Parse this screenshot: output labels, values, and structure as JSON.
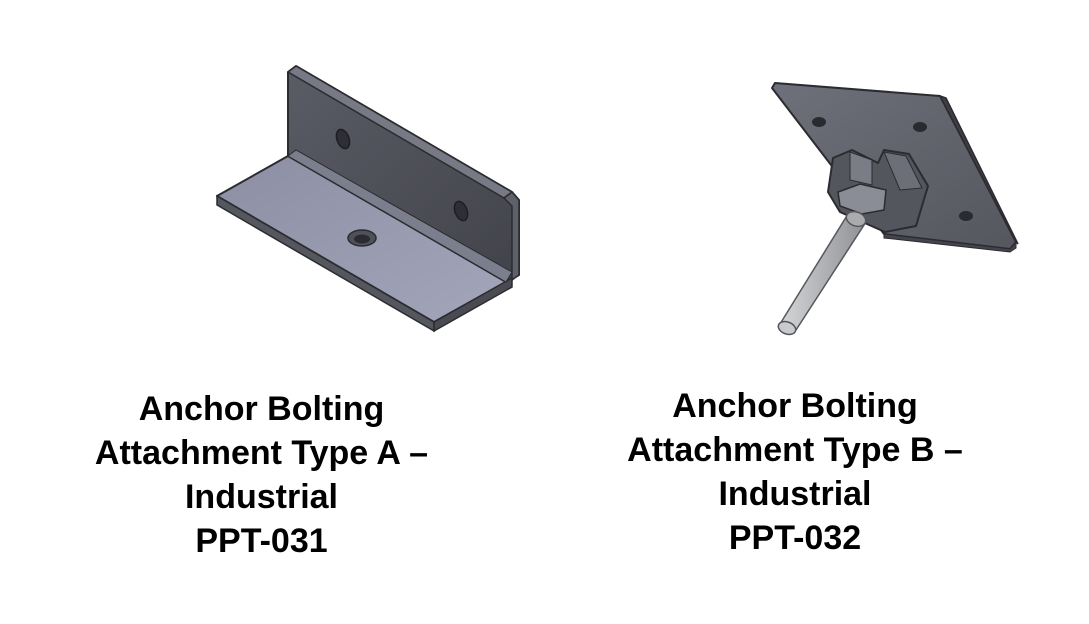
{
  "products": [
    {
      "image_name": "angle-bracket-image",
      "caption_lines": [
        "Anchor Bolting",
        "Attachment Type A –",
        "Industrial",
        "PPT-031"
      ]
    },
    {
      "image_name": "plate-with-rod-image",
      "caption_lines": [
        "Anchor Bolting",
        "Attachment Type B –",
        "Industrial",
        "PPT-032"
      ]
    }
  ],
  "colors": {
    "metal_dark": "#4a4b52",
    "metal_mid": "#6e7079",
    "metal_light": "#9c9fb0",
    "edge": "#2b2b30",
    "rod": "#b9bbbd",
    "background": "#ffffff",
    "text": "#000000"
  }
}
